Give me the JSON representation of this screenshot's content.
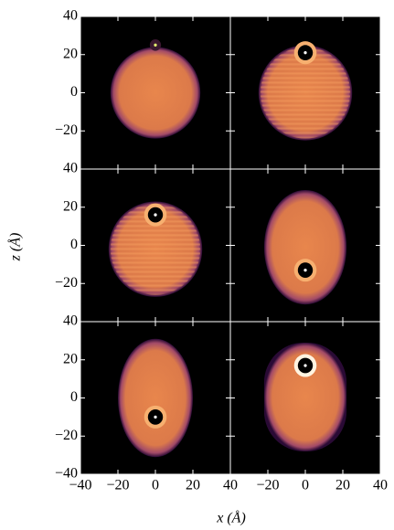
{
  "chart_data": {
    "type": "image-grid",
    "xlabel": "x (Å)",
    "ylabel": "z (Å)",
    "xlim": [
      -40,
      40
    ],
    "ylim": [
      -40,
      40
    ],
    "xticks": [
      {
        "value": -40,
        "label": "−40"
      },
      {
        "value": -20,
        "label": "−20"
      },
      0,
      20,
      40
    ],
    "yticks": [
      {
        "value": -40,
        "label": "−40"
      },
      {
        "value": -20,
        "label": "−20"
      },
      0,
      20,
      40
    ],
    "rows": 3,
    "cols": 2
  }
}
